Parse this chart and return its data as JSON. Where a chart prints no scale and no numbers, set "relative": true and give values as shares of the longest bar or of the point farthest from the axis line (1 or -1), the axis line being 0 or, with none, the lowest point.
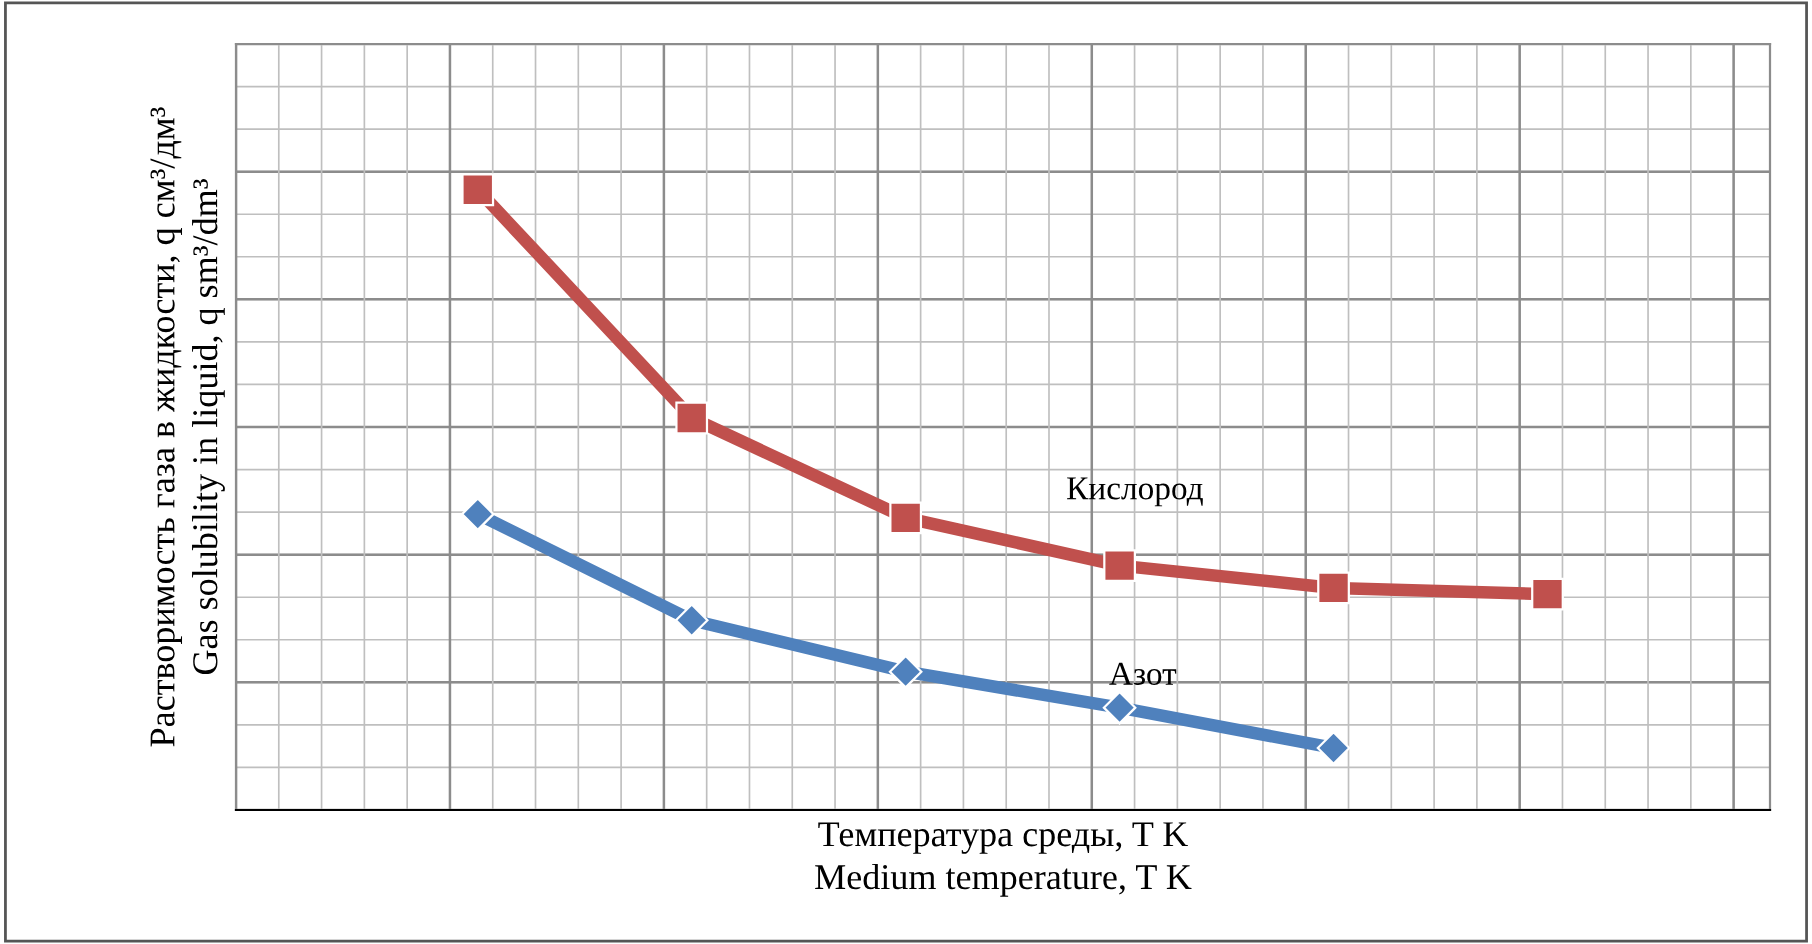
{
  "chart_data": {
    "type": "line",
    "relative": true,
    "xlabel": "Температура среды, T K\nMedium temperature, T K",
    "ylabel": "Растворимость газа в жидкости, q см³/дм³\nGas solubility in liquid, q sm³/dm³",
    "categories": [
      null,
      null,
      null,
      null,
      null,
      null
    ],
    "grid": true,
    "legend": false,
    "line_style": "solid",
    "series": [
      {
        "name": "Кислород",
        "color": "#c0504d",
        "marker": "square",
        "values": [
          1,
          0.632,
          0.471,
          0.394,
          0.358,
          0.348
        ]
      },
      {
        "name": "Азот",
        "color": "#4f81bd",
        "marker": "diamond",
        "values": [
          0.477,
          0.306,
          0.223,
          0.165,
          0.1,
          null
        ]
      }
    ]
  }
}
